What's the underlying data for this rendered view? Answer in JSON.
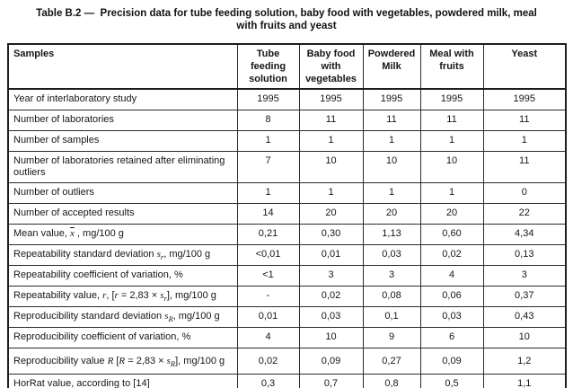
{
  "title": "Table B.2 —  Precision data for tube feeding solution, baby food with vegetables, powdered milk, meal with fruits and yeast",
  "colors": {
    "text": "#161616",
    "border": "#1d1d1d",
    "background": "#ffffff"
  },
  "table": {
    "corner_header": "Samples",
    "columns": [
      "Tube feeding solution",
      "Baby food with vegetables",
      "Powdered Milk",
      "Meal with fruits",
      "Yeast"
    ],
    "rows": [
      {
        "label": [
          {
            "text": "Year of interlaboratory study"
          }
        ],
        "values": [
          "1995",
          "1995",
          "1995",
          "1995",
          "1995"
        ]
      },
      {
        "label": [
          {
            "text": "Number of laboratories"
          }
        ],
        "values": [
          "8",
          "11",
          "11",
          "11",
          "11"
        ]
      },
      {
        "label": [
          {
            "text": "Number of samples"
          }
        ],
        "values": [
          "1",
          "1",
          "1",
          "1",
          "1"
        ]
      },
      {
        "label": [
          {
            "text": "Number of laboratories retained after eliminating outliers"
          }
        ],
        "values": [
          "7",
          "10",
          "10",
          "10",
          "11"
        ]
      },
      {
        "label": [
          {
            "text": "Number of outliers"
          }
        ],
        "values": [
          "1",
          "1",
          "1",
          "1",
          "0"
        ]
      },
      {
        "label": [
          {
            "text": "Number of accepted results"
          }
        ],
        "values": [
          "14",
          "20",
          "20",
          "20",
          "22"
        ]
      },
      {
        "label": [
          {
            "text": "Mean value, "
          },
          {
            "text": "x",
            "math": true,
            "overline": true
          },
          {
            "text": " , mg/100 g"
          }
        ],
        "values": [
          "0,21",
          "0,30",
          "1,13",
          "0,60",
          "4,34"
        ]
      },
      {
        "label": [
          {
            "text": "Repeatability standard deviation "
          },
          {
            "text": "s",
            "math": true
          },
          {
            "text": "r",
            "math": true,
            "sub": true
          },
          {
            "text": ", mg/100 g"
          }
        ],
        "values": [
          "<0,01",
          "0,01",
          "0,03",
          "0,02",
          "0,13"
        ]
      },
      {
        "label": [
          {
            "text": "Repeatability coefficient of variation, %"
          }
        ],
        "values": [
          "<1",
          "3",
          "3",
          "4",
          "3"
        ]
      },
      {
        "label": [
          {
            "text": "Repeatability value, "
          },
          {
            "text": "r",
            "math": true
          },
          {
            "text": ", ["
          },
          {
            "text": "r",
            "math": true
          },
          {
            "text": " = 2,83 × "
          },
          {
            "text": "s",
            "math": true
          },
          {
            "text": "r",
            "math": true,
            "sub": true
          },
          {
            "text": "], mg/100 g"
          }
        ],
        "values": [
          "-",
          "0,02",
          "0,08",
          "0,06",
          "0,37"
        ]
      },
      {
        "label": [
          {
            "text": "Reproducibility standard deviation "
          },
          {
            "text": "s",
            "math": true
          },
          {
            "text": "R",
            "math": true,
            "sub": true
          },
          {
            "text": ", mg/100 g"
          }
        ],
        "values": [
          "0,01",
          "0,03",
          "0,1",
          "0,03",
          "0,43"
        ]
      },
      {
        "label": [
          {
            "text": "Reproducibility coefficient of variation, %"
          }
        ],
        "values": [
          "4",
          "10",
          "9",
          "6",
          "10"
        ]
      },
      {
        "label": [
          {
            "text": "Reproducibility value "
          },
          {
            "text": "R",
            "math": true
          },
          {
            "text": " ["
          },
          {
            "text": "R",
            "math": true
          },
          {
            "text": " = 2,83 × "
          },
          {
            "text": "s",
            "math": true
          },
          {
            "text": "R",
            "math": true,
            "sub": true
          },
          {
            "text": "], mg/100 g"
          }
        ],
        "values": [
          "0,02",
          "0,09",
          "0,27",
          "0,09",
          "1,2"
        ],
        "tall": true
      },
      {
        "label": [
          {
            "text": "HorRat value, according to [14]"
          }
        ],
        "values": [
          "0,3",
          "0,7",
          "0,8",
          "0,5",
          "1,1"
        ]
      }
    ]
  }
}
